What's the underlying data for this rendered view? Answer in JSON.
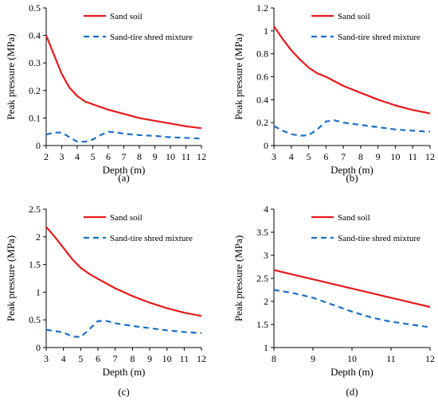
{
  "chart_data": [
    {
      "type": "line",
      "panel_label": "(a)",
      "xlabel": "Depth (m)",
      "ylabel": "Peak pressure (MPa)",
      "xlim": [
        2,
        12
      ],
      "ylim": [
        0,
        0.5
      ],
      "xticks": [
        "2",
        "3",
        "4",
        "5",
        "6",
        "7",
        "8",
        "9",
        "10",
        "11",
        "12"
      ],
      "yticks": [
        "0",
        "0.1",
        "0.2",
        "0.3",
        "0.4",
        "0.5"
      ],
      "series": [
        {
          "name": "Sand soil",
          "style": "solid",
          "color": "#e8191c",
          "x": [
            2,
            2.5,
            3,
            3.5,
            4,
            4.5,
            5,
            6,
            7,
            8,
            9,
            10,
            11,
            12
          ],
          "y": [
            0.4,
            0.33,
            0.26,
            0.21,
            0.18,
            0.16,
            0.15,
            0.13,
            0.115,
            0.1,
            0.09,
            0.08,
            0.07,
            0.063
          ]
        },
        {
          "name": "Sand-tire shred mixture",
          "style": "dashed",
          "color": "#1a6fc4",
          "x": [
            2,
            2.5,
            3,
            3.5,
            4,
            4.5,
            5,
            5.5,
            6,
            6.5,
            7,
            8,
            9,
            10,
            11,
            12
          ],
          "y": [
            0.04,
            0.047,
            0.047,
            0.03,
            0.014,
            0.014,
            0.022,
            0.038,
            0.05,
            0.048,
            0.043,
            0.038,
            0.035,
            0.03,
            0.028,
            0.025
          ]
        }
      ]
    },
    {
      "type": "line",
      "panel_label": "(b)",
      "xlabel": "Depth (m)",
      "ylabel": "Peak pressure (MPa)",
      "xlim": [
        3,
        12
      ],
      "ylim": [
        0,
        1.2
      ],
      "xticks": [
        "3",
        "4",
        "5",
        "6",
        "7",
        "8",
        "9",
        "10",
        "11",
        "12"
      ],
      "yticks": [
        "0",
        "0.2",
        "0.4",
        "0.6",
        "0.8",
        "1",
        "1.2"
      ],
      "series": [
        {
          "name": "Sand soil",
          "style": "solid",
          "color": "#e8191c",
          "x": [
            3,
            3.5,
            4,
            4.5,
            5,
            5.5,
            6,
            7,
            8,
            9,
            10,
            11,
            12
          ],
          "y": [
            1.04,
            0.93,
            0.83,
            0.75,
            0.68,
            0.63,
            0.6,
            0.52,
            0.46,
            0.4,
            0.35,
            0.31,
            0.28
          ]
        },
        {
          "name": "Sand-tire shred mixture",
          "style": "dashed",
          "color": "#1a6fc4",
          "x": [
            3,
            3.5,
            4,
            4.5,
            5,
            5.5,
            6,
            6.5,
            7,
            8,
            9,
            10,
            11,
            12
          ],
          "y": [
            0.17,
            0.13,
            0.1,
            0.085,
            0.09,
            0.14,
            0.21,
            0.22,
            0.2,
            0.18,
            0.16,
            0.14,
            0.13,
            0.12
          ]
        }
      ]
    },
    {
      "type": "line",
      "panel_label": "(c)",
      "xlabel": "Depth (m)",
      "ylabel": "Peak pressure (MPa)",
      "xlim": [
        3,
        12
      ],
      "ylim": [
        0,
        2.5
      ],
      "xticks": [
        "3",
        "4",
        "5",
        "6",
        "7",
        "8",
        "9",
        "10",
        "11",
        "12"
      ],
      "yticks": [
        "0",
        "0.5",
        "1",
        "1.5",
        "2",
        "2.5"
      ],
      "series": [
        {
          "name": "Sand soil",
          "style": "solid",
          "color": "#e8191c",
          "x": [
            3,
            3.5,
            4,
            4.5,
            5,
            5.5,
            6,
            7,
            8,
            9,
            10,
            11,
            12
          ],
          "y": [
            2.18,
            2.0,
            1.8,
            1.6,
            1.44,
            1.33,
            1.24,
            1.07,
            0.93,
            0.81,
            0.71,
            0.63,
            0.57
          ]
        },
        {
          "name": "Sand-tire shred mixture",
          "style": "dashed",
          "color": "#1a6fc4",
          "x": [
            3,
            3.5,
            4,
            4.5,
            5,
            5.5,
            6,
            6.5,
            7,
            8,
            9,
            10,
            11,
            12
          ],
          "y": [
            0.32,
            0.3,
            0.27,
            0.2,
            0.19,
            0.33,
            0.48,
            0.48,
            0.44,
            0.39,
            0.35,
            0.31,
            0.28,
            0.26
          ]
        }
      ]
    },
    {
      "type": "line",
      "panel_label": "(d)",
      "xlabel": "Depth (m)",
      "ylabel": "Peak pressure (MPa)",
      "xlim": [
        8,
        12
      ],
      "ylim": [
        1,
        4
      ],
      "xticks": [
        "8",
        "9",
        "10",
        "11",
        "12"
      ],
      "yticks": [
        "1",
        "1.5",
        "2",
        "2.5",
        "3",
        "3.5",
        "4"
      ],
      "series": [
        {
          "name": "Sand soil",
          "style": "solid",
          "color": "#e8191c",
          "x": [
            8,
            9,
            10,
            11,
            12
          ],
          "y": [
            2.68,
            2.48,
            2.28,
            2.08,
            1.88
          ]
        },
        {
          "name": "Sand-tire shred mixture",
          "style": "dashed",
          "color": "#1a6fc4",
          "x": [
            8,
            8.5,
            9,
            9.5,
            10,
            10.5,
            11,
            11.5,
            12
          ],
          "y": [
            2.25,
            2.18,
            2.08,
            1.93,
            1.78,
            1.65,
            1.56,
            1.5,
            1.44
          ]
        }
      ]
    }
  ]
}
